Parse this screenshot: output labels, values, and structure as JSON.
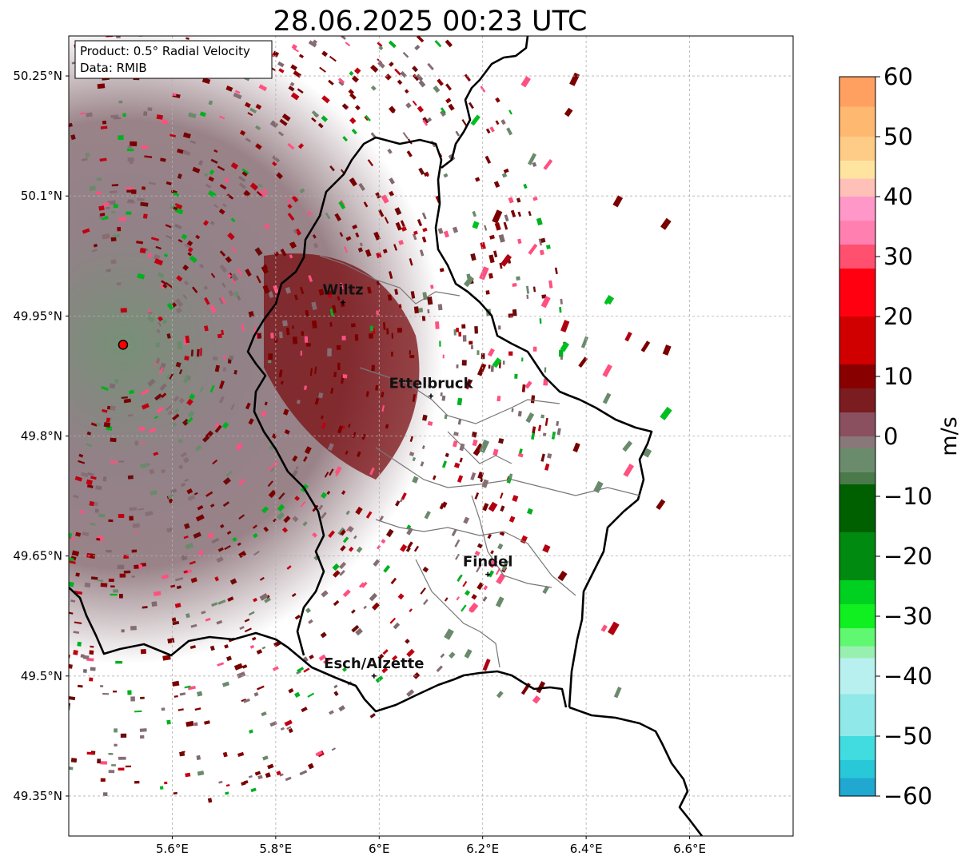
{
  "title": "28.06.2025 00:23 UTC",
  "info_box": {
    "line1": "Product: 0.5° Radial Velocity",
    "line2": "Data: RMIB"
  },
  "map": {
    "lon_range": [
      5.4,
      6.8
    ],
    "lat_range": [
      49.3,
      50.3
    ],
    "lon_ticks": [
      {
        "value": 5.6,
        "label": "5.6°E"
      },
      {
        "value": 5.8,
        "label": "5.8°E"
      },
      {
        "value": 6.0,
        "label": "6°E"
      },
      {
        "value": 6.2,
        "label": "6.2°E"
      },
      {
        "value": 6.4,
        "label": "6.4°E"
      },
      {
        "value": 6.6,
        "label": "6.6°E"
      }
    ],
    "lat_ticks": [
      {
        "value": 50.25,
        "label": "50.25°N"
      },
      {
        "value": 50.1,
        "label": "50.1°N"
      },
      {
        "value": 49.95,
        "label": "49.95°N"
      },
      {
        "value": 49.8,
        "label": "49.8°N"
      },
      {
        "value": 49.65,
        "label": "49.65°N"
      },
      {
        "value": 49.5,
        "label": "49.5°N"
      },
      {
        "value": 49.35,
        "label": "49.35°N"
      }
    ],
    "radar_site": {
      "lon": 5.505,
      "lat": 49.914
    },
    "cities": [
      {
        "name": "Wiltz",
        "lon": 5.93,
        "lat": 49.967
      },
      {
        "name": "Ettelbruck",
        "lon": 6.1,
        "lat": 49.85
      },
      {
        "name": "Findel",
        "lon": 6.21,
        "lat": 49.627
      },
      {
        "name": "Esch/Alzette",
        "lon": 5.99,
        "lat": 49.5
      }
    ]
  },
  "colorbar": {
    "label": "m/s",
    "min": -60,
    "max": 60,
    "ticks": [
      "60",
      "50",
      "40",
      "30",
      "20",
      "10",
      "0",
      "−10",
      "−20",
      "−30",
      "−40",
      "−50",
      "−60"
    ],
    "tick_values": [
      60,
      50,
      40,
      30,
      20,
      10,
      0,
      -10,
      -20,
      -30,
      -40,
      -50,
      -60
    ],
    "stops": [
      {
        "v": 60,
        "c": "#ffa060"
      },
      {
        "v": 55,
        "c": "#ffb870"
      },
      {
        "v": 50,
        "c": "#ffcc88"
      },
      {
        "v": 46,
        "c": "#ffe4a0"
      },
      {
        "v": 43,
        "c": "#ffc0b8"
      },
      {
        "v": 40,
        "c": "#ff98c8"
      },
      {
        "v": 36,
        "c": "#ff80b0"
      },
      {
        "v": 32,
        "c": "#ff5070"
      },
      {
        "v": 28,
        "c": "#ff0010"
      },
      {
        "v": 20,
        "c": "#d00000"
      },
      {
        "v": 12,
        "c": "#880000"
      },
      {
        "v": 8,
        "c": "#7a1c20"
      },
      {
        "v": 4,
        "c": "#8a5060"
      },
      {
        "v": 0,
        "c": "#88787a"
      },
      {
        "v": -2,
        "c": "#6a8c6c"
      },
      {
        "v": -6,
        "c": "#4a7a4a"
      },
      {
        "v": -8,
        "c": "#006000"
      },
      {
        "v": -16,
        "c": "#008a10"
      },
      {
        "v": -24,
        "c": "#00d020"
      },
      {
        "v": -28,
        "c": "#10f020"
      },
      {
        "v": -32,
        "c": "#60f870"
      },
      {
        "v": -35,
        "c": "#98f0b0"
      },
      {
        "v": -37,
        "c": "#b8f0f0"
      },
      {
        "v": -43,
        "c": "#90e8e8"
      },
      {
        "v": -50,
        "c": "#40dce0"
      },
      {
        "v": -54,
        "c": "#28c8d8"
      },
      {
        "v": -57,
        "c": "#20a8d0"
      },
      {
        "v": -60,
        "c": "#2080c8"
      }
    ]
  }
}
